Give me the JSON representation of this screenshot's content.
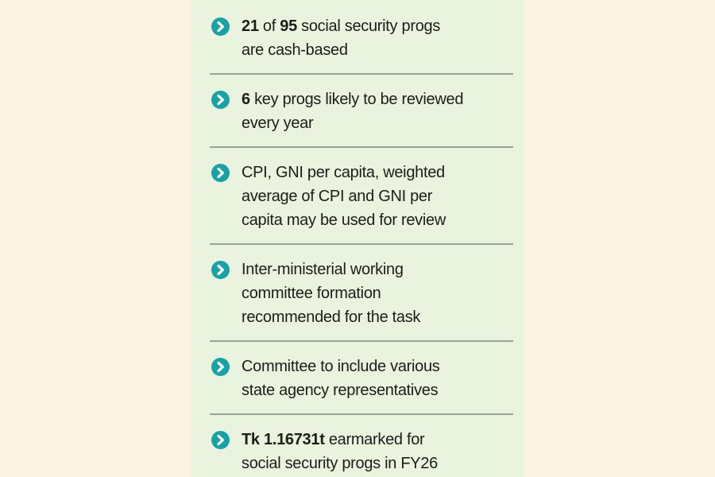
{
  "colors": {
    "outer_background": "#fdf3e2",
    "panel_background": "#eaf3de",
    "accent_teal": "#17a2a8",
    "divider_gray": "#99a399",
    "text": "#1d1d1b"
  },
  "panel": {
    "items": [
      {
        "icon": "chevron-right-icon",
        "lines": [
          [
            {
              "t": "21",
              "b": true
            },
            {
              "t": " of ",
              "b": false
            },
            {
              "t": "95",
              "b": true
            },
            {
              "t": " social security progs",
              "b": false
            }
          ],
          [
            {
              "t": "are cash-based",
              "b": false
            }
          ]
        ]
      },
      {
        "icon": "chevron-right-icon",
        "lines": [
          [
            {
              "t": "6",
              "b": true
            },
            {
              "t": " key progs likely to be reviewed",
              "b": false
            }
          ],
          [
            {
              "t": "every year",
              "b": false
            }
          ]
        ]
      },
      {
        "icon": "chevron-right-icon",
        "lines": [
          [
            {
              "t": "CPI, GNI per capita, weighted",
              "b": false
            }
          ],
          [
            {
              "t": "average of CPI and GNI per",
              "b": false
            }
          ],
          [
            {
              "t": "capita may be used for review",
              "b": false
            }
          ]
        ]
      },
      {
        "icon": "chevron-right-icon",
        "lines": [
          [
            {
              "t": "Inter-ministerial working",
              "b": false
            }
          ],
          [
            {
              "t": "committee formation",
              "b": false
            }
          ],
          [
            {
              "t": "recommended for the task",
              "b": false
            }
          ]
        ]
      },
      {
        "icon": "chevron-right-icon",
        "lines": [
          [
            {
              "t": "Committee to include various",
              "b": false
            }
          ],
          [
            {
              "t": "state agency representatives",
              "b": false
            }
          ]
        ]
      },
      {
        "icon": "chevron-right-icon",
        "lines": [
          [
            {
              "t": "Tk 1.16731t",
              "b": true
            },
            {
              "t": " earmarked for",
              "b": false
            }
          ],
          [
            {
              "t": "social security progs in FY26",
              "b": false
            }
          ]
        ]
      }
    ]
  }
}
